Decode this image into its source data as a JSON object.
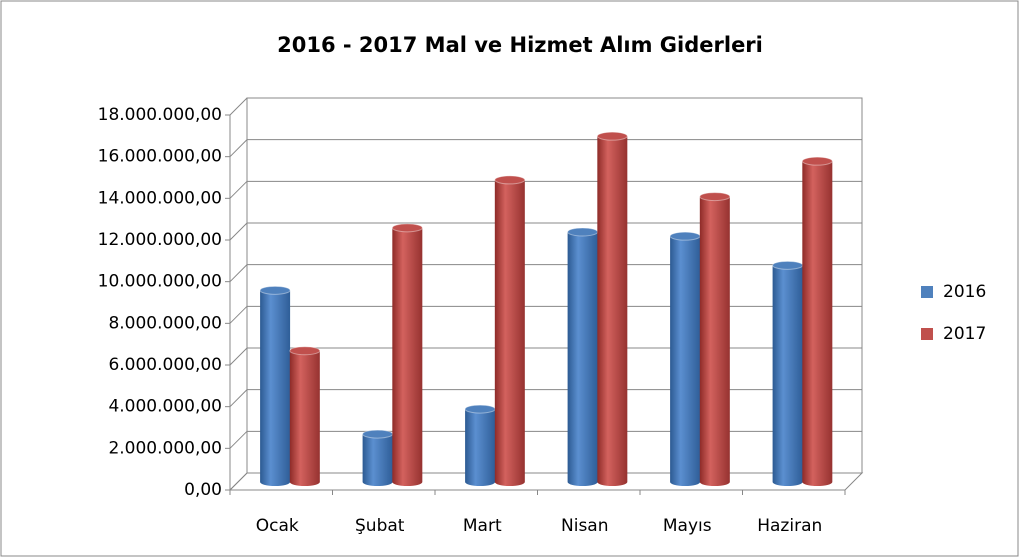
{
  "chart_data": {
    "type": "bar",
    "title": "2016 - 2017 Mal ve Hizmet Alım Giderleri",
    "categories": [
      "Ocak",
      "Şubat",
      "Mart",
      "Nisan",
      "Mayıs",
      "Haziran"
    ],
    "series": [
      {
        "name": "2016",
        "color": "#4f81bd",
        "values": [
          9200000,
          2300000,
          3500000,
          12000000,
          11800000,
          10400000
        ]
      },
      {
        "name": "2017",
        "color": "#c0504d",
        "values": [
          6300000,
          12200000,
          14500000,
          16600000,
          13700000,
          15400000
        ]
      }
    ],
    "ylim": [
      0,
      18000000
    ],
    "yticks": [
      {
        "value": 0,
        "label": "0,00"
      },
      {
        "value": 2000000,
        "label": "2.000.000,00"
      },
      {
        "value": 4000000,
        "label": "4.000.000,00"
      },
      {
        "value": 6000000,
        "label": "6.000.000,00"
      },
      {
        "value": 8000000,
        "label": "8.000.000,00"
      },
      {
        "value": 10000000,
        "label": "10.000.000,00"
      },
      {
        "value": 12000000,
        "label": "12.000.000,00"
      },
      {
        "value": 14000000,
        "label": "14.000.000,00"
      },
      {
        "value": 16000000,
        "label": "16.000.000,00"
      },
      {
        "value": 18000000,
        "label": "18.000.000,00"
      }
    ],
    "grid": true,
    "legend": "right"
  }
}
